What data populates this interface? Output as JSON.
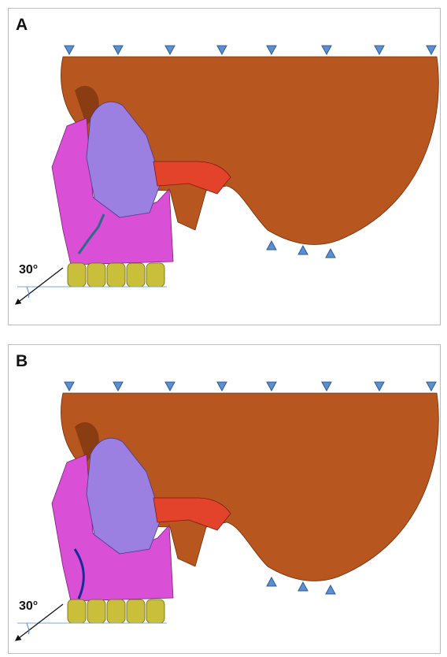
{
  "panels": [
    {
      "label": "A",
      "angle_label": "30°"
    },
    {
      "label": "B",
      "angle_label": "30°"
    }
  ]
}
